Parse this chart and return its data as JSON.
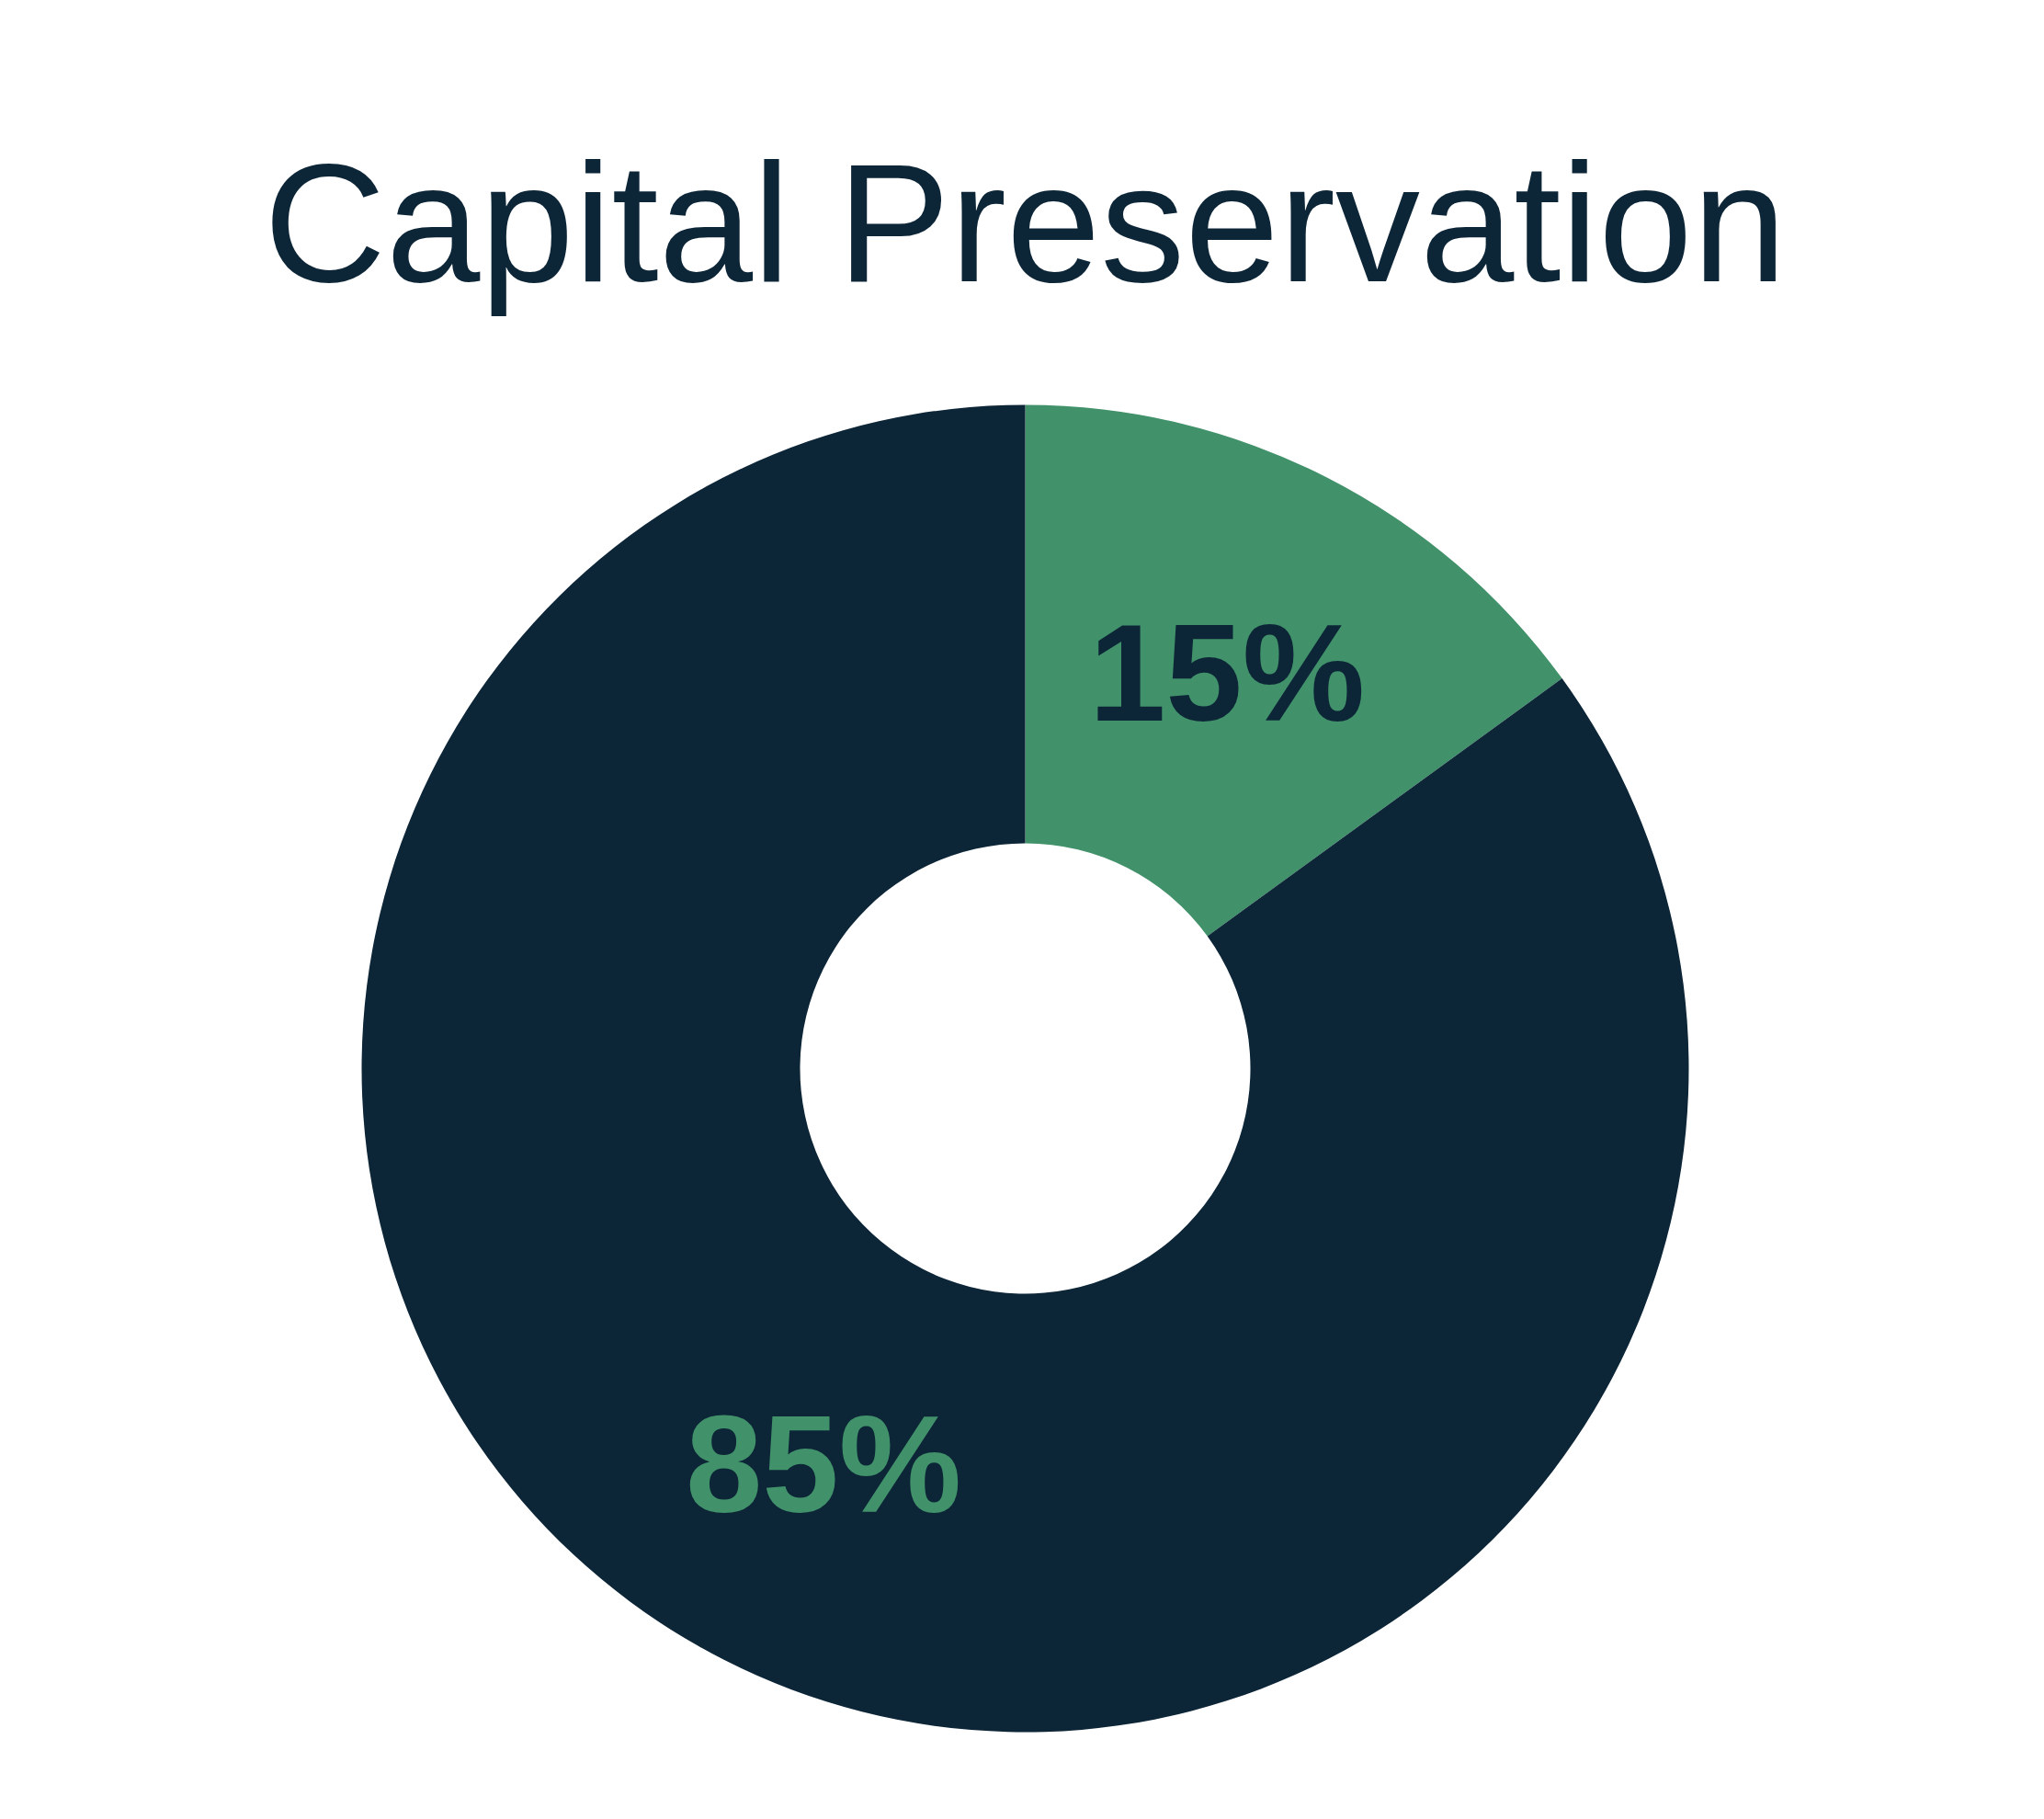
{
  "chart_data": {
    "type": "donut",
    "title": "Capital Preservation",
    "categories": [
      null,
      null
    ],
    "values": [
      15,
      85
    ],
    "colors": [
      "#41916a",
      "#0c2537"
    ],
    "value_labels": [
      "15%",
      "85%"
    ]
  }
}
